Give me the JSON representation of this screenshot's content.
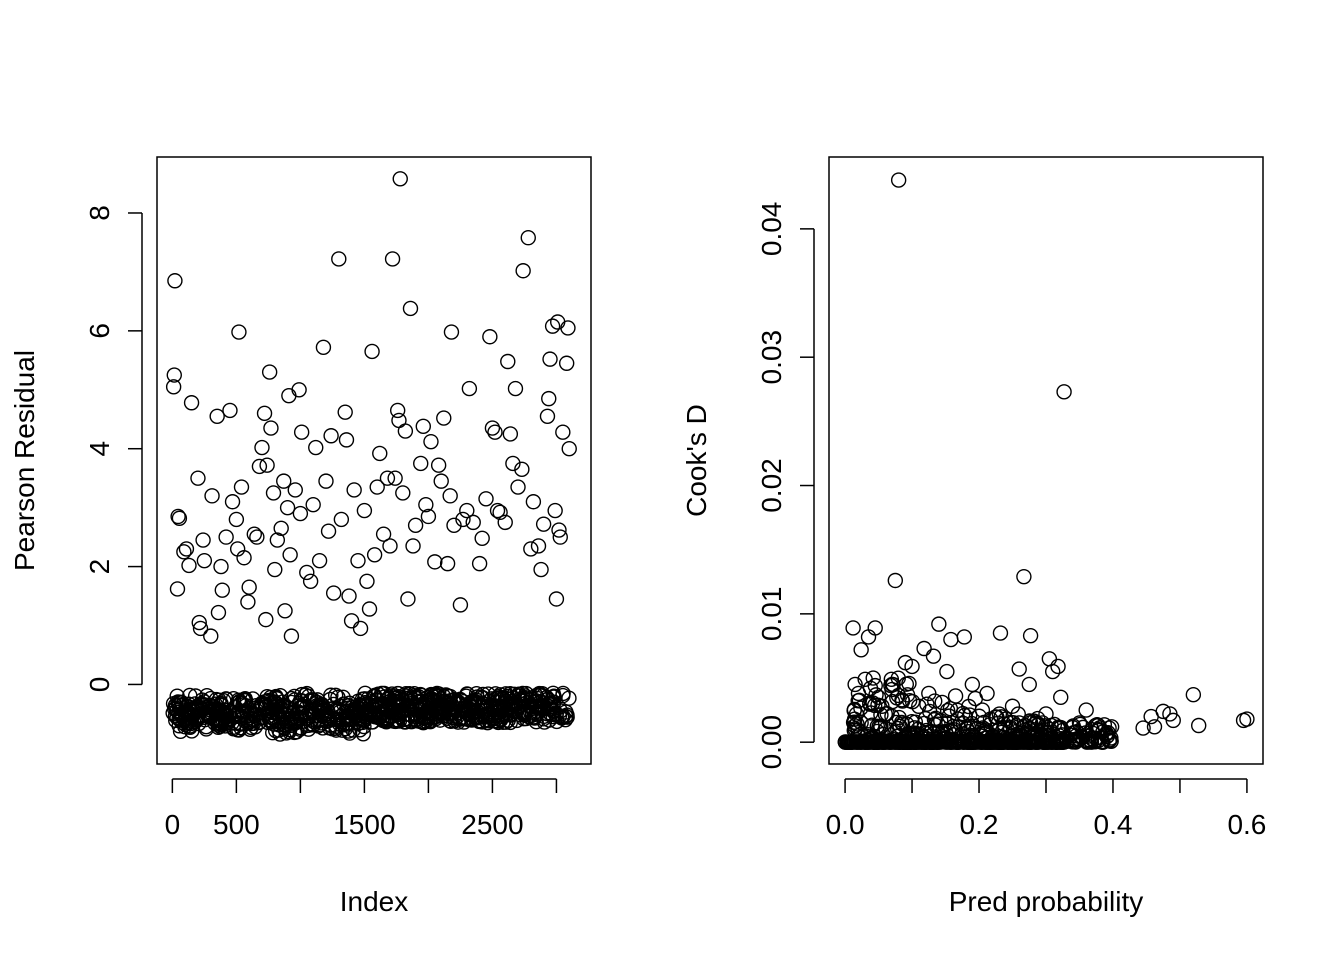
{
  "chart_data": [
    {
      "type": "scatter",
      "xlabel": "Index",
      "ylabel": "Pearson Residual",
      "xlim": [
        -120,
        3270
      ],
      "ylim": [
        -1.35,
        8.95
      ],
      "xticks": [
        0,
        500,
        1000,
        1500,
        2000,
        2500,
        3000
      ],
      "xtick_labels": [
        "0",
        "500",
        "",
        "1500",
        "",
        "2500",
        ""
      ],
      "yticks": [
        0,
        2,
        4,
        6,
        8
      ],
      "ytick_labels": [
        "0",
        "2",
        "4",
        "6",
        "8"
      ],
      "grid": false,
      "series": [
        {
          "marker": "open-circle",
          "points": [
            [
              20,
              6.85
            ],
            [
              15,
              5.25
            ],
            [
              10,
              5.05
            ],
            [
              150,
              4.78
            ],
            [
              45,
              2.85
            ],
            [
              55,
              2.82
            ],
            [
              40,
              1.62
            ],
            [
              90,
              2.25
            ],
            [
              110,
              2.3
            ],
            [
              130,
              2.02
            ],
            [
              200,
              3.5
            ],
            [
              210,
              1.05
            ],
            [
              220,
              0.95
            ],
            [
              240,
              2.45
            ],
            [
              250,
              2.1
            ],
            [
              300,
              0.82
            ],
            [
              310,
              3.2
            ],
            [
              350,
              4.55
            ],
            [
              360,
              1.22
            ],
            [
              380,
              2.0
            ],
            [
              390,
              1.6
            ],
            [
              420,
              2.5
            ],
            [
              450,
              4.65
            ],
            [
              470,
              3.1
            ],
            [
              500,
              2.8
            ],
            [
              510,
              2.3
            ],
            [
              520,
              5.98
            ],
            [
              540,
              3.35
            ],
            [
              560,
              2.15
            ],
            [
              590,
              1.4
            ],
            [
              600,
              1.65
            ],
            [
              640,
              2.55
            ],
            [
              660,
              2.5
            ],
            [
              680,
              3.7
            ],
            [
              700,
              4.02
            ],
            [
              720,
              4.6
            ],
            [
              730,
              1.1
            ],
            [
              740,
              3.72
            ],
            [
              760,
              5.3
            ],
            [
              770,
              4.35
            ],
            [
              790,
              3.25
            ],
            [
              800,
              1.95
            ],
            [
              820,
              2.45
            ],
            [
              850,
              2.65
            ],
            [
              870,
              3.45
            ],
            [
              880,
              1.25
            ],
            [
              900,
              3.0
            ],
            [
              910,
              4.9
            ],
            [
              920,
              2.2
            ],
            [
              930,
              0.82
            ],
            [
              960,
              3.3
            ],
            [
              990,
              5.0
            ],
            [
              1000,
              2.9
            ],
            [
              1010,
              4.28
            ],
            [
              1050,
              1.9
            ],
            [
              1080,
              1.75
            ],
            [
              1100,
              3.05
            ],
            [
              1120,
              4.02
            ],
            [
              1150,
              2.1
            ],
            [
              1180,
              5.72
            ],
            [
              1200,
              3.45
            ],
            [
              1220,
              2.6
            ],
            [
              1240,
              4.22
            ],
            [
              1260,
              1.55
            ],
            [
              1300,
              7.22
            ],
            [
              1320,
              2.8
            ],
            [
              1350,
              4.62
            ],
            [
              1360,
              4.15
            ],
            [
              1380,
              1.5
            ],
            [
              1400,
              1.08
            ],
            [
              1420,
              3.3
            ],
            [
              1450,
              2.1
            ],
            [
              1470,
              0.95
            ],
            [
              1500,
              2.95
            ],
            [
              1520,
              1.75
            ],
            [
              1540,
              1.28
            ],
            [
              1560,
              5.65
            ],
            [
              1580,
              2.2
            ],
            [
              1600,
              3.35
            ],
            [
              1620,
              3.92
            ],
            [
              1650,
              2.55
            ],
            [
              1680,
              3.5
            ],
            [
              1700,
              2.35
            ],
            [
              1720,
              7.22
            ],
            [
              1740,
              3.5
            ],
            [
              1760,
              4.65
            ],
            [
              1770,
              4.48
            ],
            [
              1780,
              8.58
            ],
            [
              1800,
              3.25
            ],
            [
              1820,
              4.3
            ],
            [
              1840,
              1.45
            ],
            [
              1860,
              6.38
            ],
            [
              1880,
              2.35
            ],
            [
              1900,
              2.7
            ],
            [
              1940,
              3.75
            ],
            [
              1960,
              4.38
            ],
            [
              1980,
              3.05
            ],
            [
              2000,
              2.85
            ],
            [
              2020,
              4.12
            ],
            [
              2050,
              2.08
            ],
            [
              2080,
              3.72
            ],
            [
              2100,
              3.45
            ],
            [
              2120,
              4.52
            ],
            [
              2150,
              2.05
            ],
            [
              2170,
              3.2
            ],
            [
              2180,
              5.98
            ],
            [
              2200,
              2.7
            ],
            [
              2250,
              1.35
            ],
            [
              2270,
              2.8
            ],
            [
              2300,
              2.95
            ],
            [
              2320,
              5.02
            ],
            [
              2350,
              2.75
            ],
            [
              2400,
              2.05
            ],
            [
              2420,
              2.48
            ],
            [
              2450,
              3.15
            ],
            [
              2480,
              5.9
            ],
            [
              2500,
              4.35
            ],
            [
              2520,
              4.28
            ],
            [
              2540,
              2.95
            ],
            [
              2560,
              2.92
            ],
            [
              2600,
              2.75
            ],
            [
              2620,
              5.48
            ],
            [
              2640,
              4.25
            ],
            [
              2660,
              3.75
            ],
            [
              2680,
              5.02
            ],
            [
              2700,
              3.35
            ],
            [
              2730,
              3.65
            ],
            [
              2740,
              7.02
            ],
            [
              2780,
              7.58
            ],
            [
              2800,
              2.3
            ],
            [
              2820,
              3.1
            ],
            [
              2860,
              2.35
            ],
            [
              2880,
              1.95
            ],
            [
              2900,
              2.72
            ],
            [
              2930,
              4.55
            ],
            [
              2940,
              4.85
            ],
            [
              2950,
              5.52
            ],
            [
              2970,
              6.08
            ],
            [
              2990,
              2.95
            ],
            [
              3010,
              6.15
            ],
            [
              3000,
              1.45
            ],
            [
              3020,
              2.62
            ],
            [
              3030,
              2.5
            ],
            [
              3050,
              4.28
            ],
            [
              3080,
              5.45
            ],
            [
              3090,
              6.05
            ],
            [
              3100,
              4.0
            ]
          ]
        }
      ]
    },
    {
      "type": "scatter",
      "xlabel": "Pred probability",
      "ylabel": "Cook's D",
      "xlim": [
        -0.024,
        0.624
      ],
      "ylim": [
        -0.0017,
        0.0456
      ],
      "xticks": [
        0.0,
        0.1,
        0.2,
        0.3,
        0.4,
        0.5,
        0.6
      ],
      "xtick_labels": [
        "0.0",
        "",
        "0.2",
        "",
        "0.4",
        "",
        "0.6"
      ],
      "yticks": [
        0.0,
        0.01,
        0.02,
        0.03,
        0.04
      ],
      "ytick_labels": [
        "0.00",
        "0.01",
        "0.02",
        "0.03",
        "0.04"
      ],
      "grid": false,
      "series": [
        {
          "marker": "open-circle",
          "points": [
            [
              0.08,
              0.0438
            ],
            [
              0.327,
              0.0273
            ],
            [
              0.075,
              0.0126
            ],
            [
              0.267,
              0.0129
            ],
            [
              0.012,
              0.0089
            ],
            [
              0.045,
              0.0089
            ],
            [
              0.024,
              0.0072
            ],
            [
              0.035,
              0.0082
            ],
            [
              0.14,
              0.0092
            ],
            [
              0.158,
              0.008
            ],
            [
              0.178,
              0.0082
            ],
            [
              0.232,
              0.0085
            ],
            [
              0.277,
              0.0083
            ],
            [
              0.09,
              0.0062
            ],
            [
              0.1,
              0.0059
            ],
            [
              0.118,
              0.0073
            ],
            [
              0.132,
              0.0067
            ],
            [
              0.152,
              0.0055
            ],
            [
              0.212,
              0.0038
            ],
            [
              0.26,
              0.0057
            ],
            [
              0.305,
              0.0065
            ],
            [
              0.31,
              0.0055
            ],
            [
              0.318,
              0.0059
            ],
            [
              0.322,
              0.0035
            ],
            [
              0.275,
              0.0045
            ],
            [
              0.36,
              0.0025
            ],
            [
              0.378,
              0.0013
            ],
            [
              0.445,
              0.0011
            ],
            [
              0.457,
              0.002
            ],
            [
              0.462,
              0.0012
            ],
            [
              0.475,
              0.0024
            ],
            [
              0.485,
              0.0022
            ],
            [
              0.49,
              0.0017
            ],
            [
              0.52,
              0.0037
            ],
            [
              0.528,
              0.0013
            ],
            [
              0.595,
              0.0017
            ],
            [
              0.6,
              0.0018
            ],
            [
              0.398,
              0.0012
            ],
            [
              0.385,
              0.0008
            ],
            [
              0.35,
              0.0015
            ],
            [
              0.015,
              0.0045
            ],
            [
              0.02,
              0.0038
            ],
            [
              0.03,
              0.0049
            ],
            [
              0.038,
              0.0042
            ],
            [
              0.042,
              0.005
            ],
            [
              0.05,
              0.0035
            ],
            [
              0.055,
              0.0028
            ],
            [
              0.06,
              0.0022
            ],
            [
              0.07,
              0.0041
            ],
            [
              0.085,
              0.0033
            ],
            [
              0.11,
              0.0028
            ],
            [
              0.125,
              0.0038
            ],
            [
              0.145,
              0.0031
            ],
            [
              0.165,
              0.0036
            ],
            [
              0.19,
              0.0045
            ],
            [
              0.205,
              0.0025
            ],
            [
              0.24,
              0.0018
            ],
            [
              0.25,
              0.0028
            ],
            [
              0.285,
              0.0015
            ],
            [
              0.3,
              0.0022
            ]
          ]
        }
      ]
    }
  ]
}
